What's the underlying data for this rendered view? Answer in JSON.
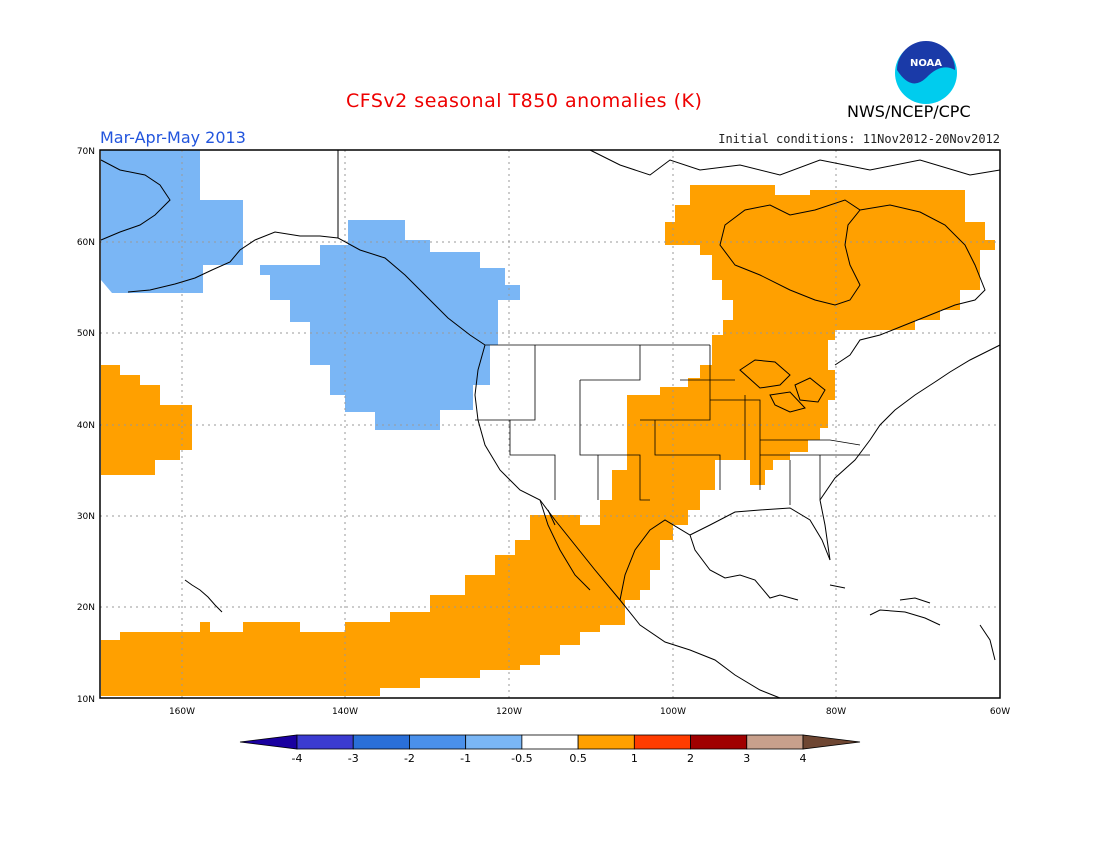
{
  "title": "CFSv2 seasonal T850 anomalies (K)",
  "agency": "NWS/NCEP/CPC",
  "logo_text": "NOAA",
  "season": "Mar-Apr-May 2013",
  "initial_conditions": "Initial conditions: 11Nov2012-20Nov2012",
  "lat_labels": [
    "70N",
    "60N",
    "50N",
    "40N",
    "30N",
    "20N",
    "10N"
  ],
  "lon_labels": [
    "160W",
    "140W",
    "120W",
    "100W",
    "80W",
    "60W"
  ],
  "colorbar": {
    "colors": [
      "#1a00a0",
      "#3b3bd0",
      "#2a6fd8",
      "#4a90ea",
      "#7ab6f5",
      "#ffffff",
      "#ffa000",
      "#ff3c00",
      "#a00000",
      "#c8a08c",
      "#6e4632"
    ],
    "tick_labels": [
      "-4",
      "-3",
      "-2",
      "-1",
      "-0.5",
      "0.5",
      "1",
      "2",
      "3",
      "4"
    ]
  }
}
